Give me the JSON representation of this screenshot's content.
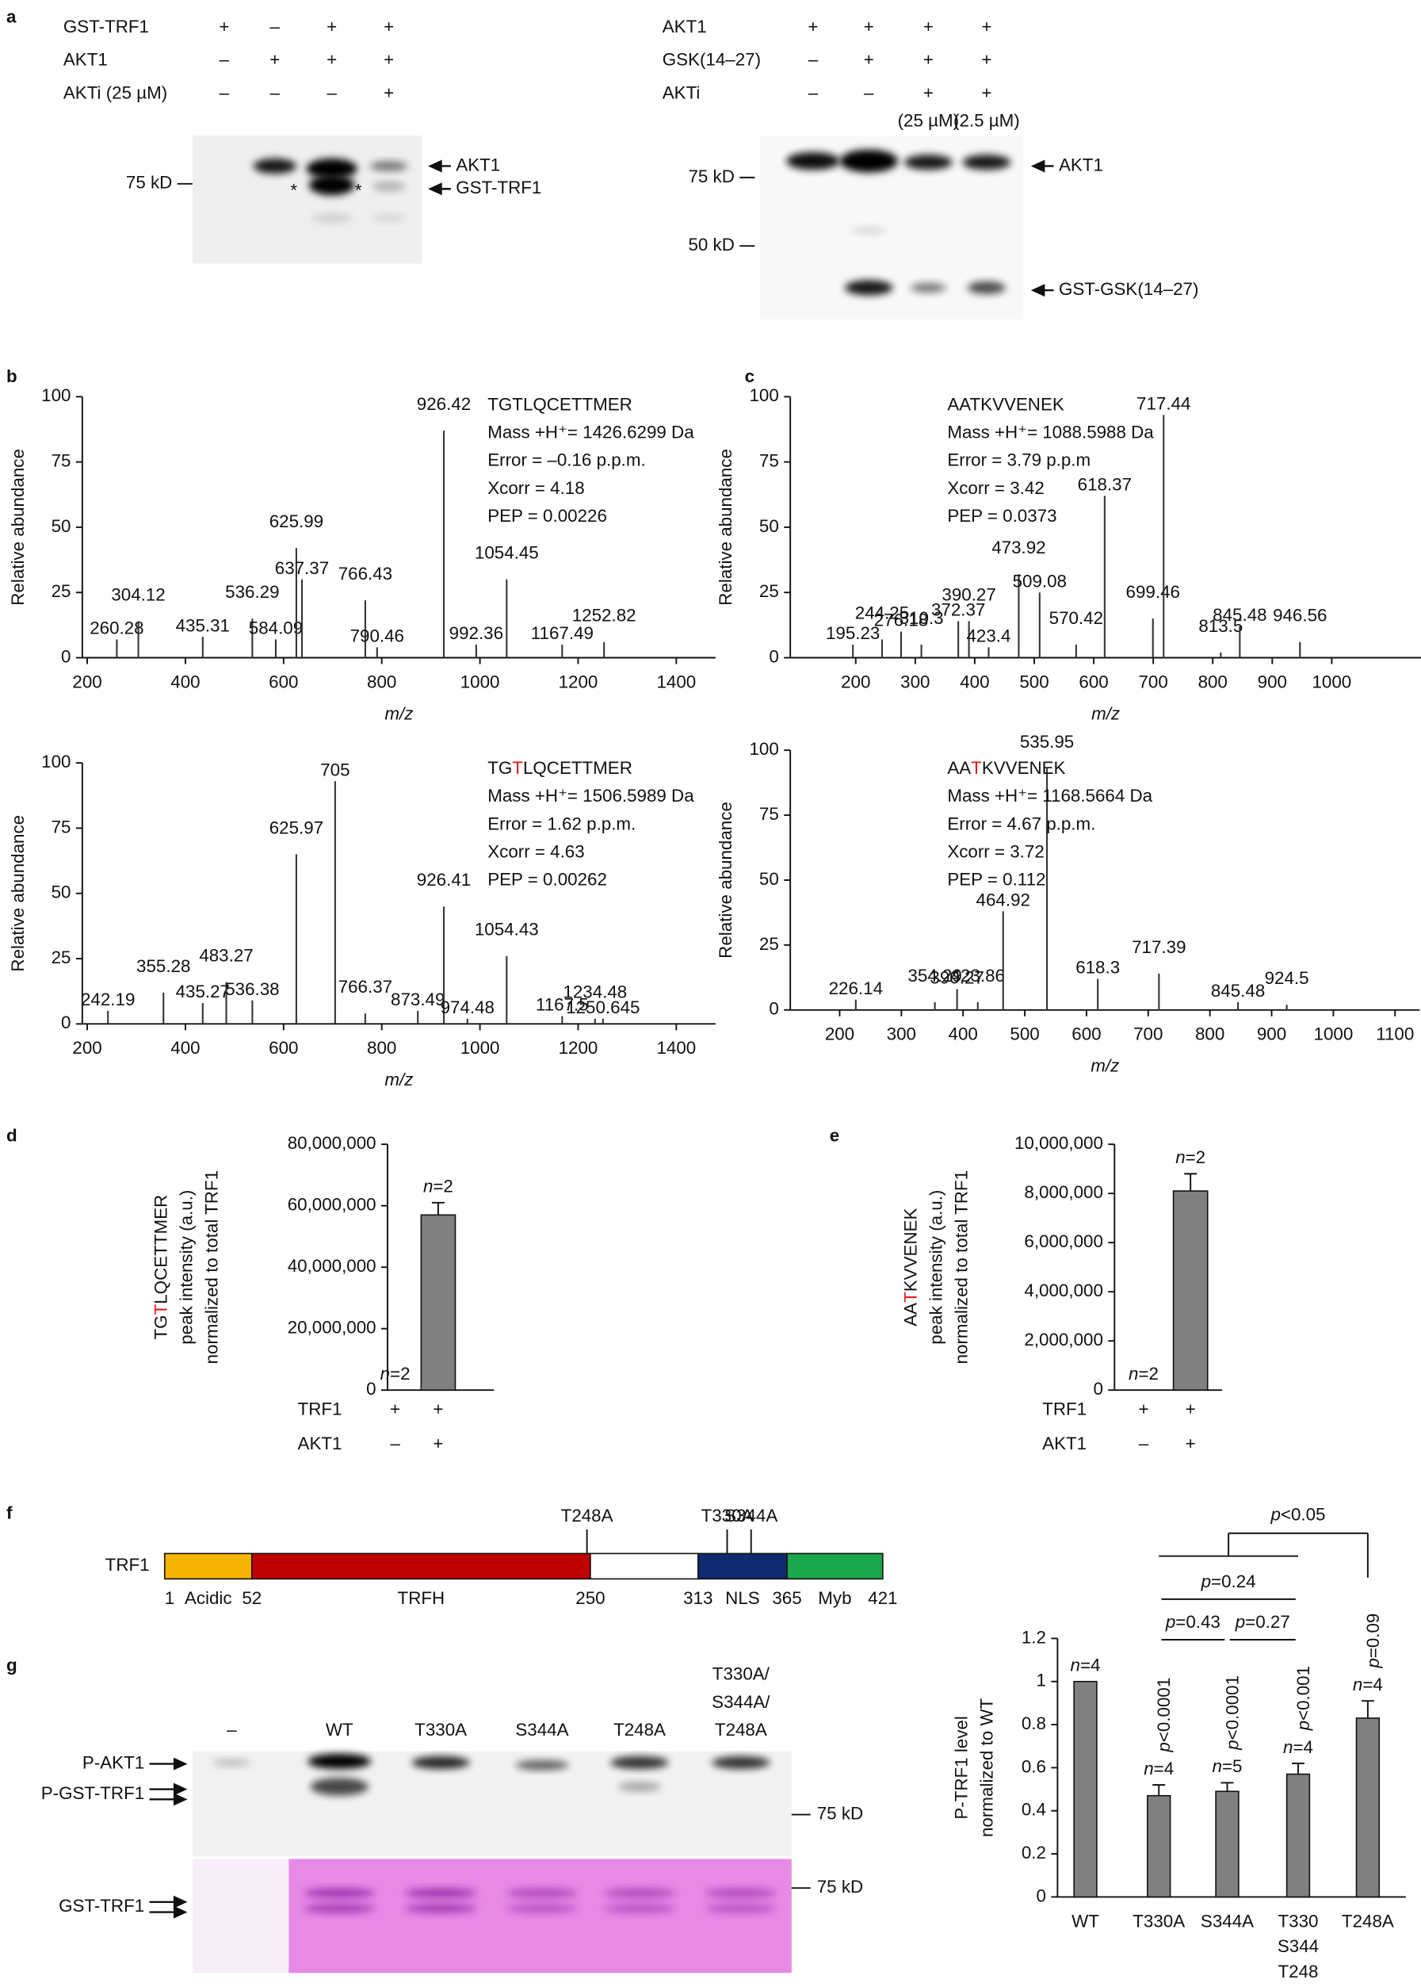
{
  "panel_labels": [
    "a",
    "b",
    "c",
    "d",
    "e",
    "f",
    "g"
  ],
  "blot_a1": {
    "rows": [
      {
        "label": "GST-TRF1",
        "marks": [
          "+",
          "–",
          "+",
          "+"
        ]
      },
      {
        "label": "AKT1",
        "marks": [
          "–",
          "+",
          "+",
          "+"
        ]
      },
      {
        "label": "AKTi (25 µM)",
        "marks": [
          "–",
          "–",
          "–",
          "+"
        ]
      }
    ],
    "markers": [
      "75 kD"
    ],
    "bands": [
      "AKT1",
      "GST-TRF1"
    ],
    "asterisks": [
      "*",
      "*"
    ]
  },
  "blot_a2": {
    "rows": [
      {
        "label": "AKT1",
        "marks": [
          "+",
          "+",
          "+",
          "+"
        ]
      },
      {
        "label": "GSK(14–27)",
        "marks": [
          "–",
          "+",
          "+",
          "+"
        ]
      },
      {
        "label": "AKTi",
        "marks": [
          "–",
          "–",
          "+",
          "+"
        ]
      }
    ],
    "concentrations": [
      "(25 µM)",
      "(2.5 µM)"
    ],
    "markers": [
      "75 kD",
      "50 kD"
    ],
    "bands": [
      "AKT1",
      "GST-GSK(14–27)"
    ]
  },
  "chart_data": [
    {
      "type": "spectrum",
      "xlabel": "m/z",
      "ylabel": "Relative abundance",
      "xlim": [
        190,
        1480
      ],
      "xticks": [
        200,
        400,
        600,
        800,
        1000,
        1200,
        1400
      ],
      "ylim": [
        0,
        100
      ],
      "yticks": [
        0,
        25,
        50,
        75,
        100
      ],
      "color": "#333333",
      "x": [
        260.28,
        304.12,
        435.31,
        536.29,
        584.09,
        625.99,
        637.37,
        766.43,
        790.46,
        926.42,
        992.36,
        1054.45,
        1167.49,
        1252.82
      ],
      "values": [
        7,
        14,
        8,
        15,
        7,
        42,
        30,
        22,
        4,
        87,
        5,
        30,
        5,
        6
      ],
      "peptide": [
        "TGTLQCETTMER"
      ],
      "info": [
        "Mass +H⁺= 1426.6299 Da",
        "Error = –0.16 p.p.m.",
        "Xcorr = 4.18",
        "PEP = 0.00226"
      ]
    },
    {
      "type": "spectrum",
      "xlabel": "m/z",
      "ylabel": "Relative abundance",
      "xlim": [
        190,
        1480
      ],
      "xticks": [
        200,
        400,
        600,
        800,
        1000,
        1200,
        1400
      ],
      "ylim": [
        0,
        100
      ],
      "yticks": [
        0,
        25,
        50,
        75,
        100
      ],
      "color": "#333333",
      "x": [
        242.19,
        355.28,
        435.27,
        483.27,
        536.38,
        625.97,
        705.0,
        766.37,
        873.49,
        926.41,
        974.48,
        1054.43,
        1167.5,
        1234.48,
        1250.645
      ],
      "values": [
        5,
        12,
        8,
        16,
        9,
        65,
        93,
        4,
        5,
        45,
        2,
        26,
        3,
        2,
        2
      ],
      "peptide": [
        "TG",
        "T",
        "LQCETTMER"
      ],
      "highlight_part": 1,
      "highlight_color": "#e31a1c",
      "info": [
        "Mass +H⁺= 1506.5989 Da",
        "Error = 1.62 p.p.m.",
        "Xcorr = 4.63",
        "PEP = 0.00262"
      ]
    },
    {
      "type": "spectrum",
      "xlabel": "m/z",
      "ylabel": "Relative abundance",
      "xlim": [
        90,
        1150
      ],
      "xticks": [
        200,
        300,
        400,
        500,
        600,
        700,
        800,
        900,
        1000
      ],
      "ylim": [
        0,
        100
      ],
      "yticks": [
        0,
        25,
        50,
        75,
        100
      ],
      "color": "#333333",
      "x": [
        195.23,
        244.25,
        276.18,
        310.3,
        372.37,
        390.27,
        423.4,
        473.92,
        509.08,
        570.42,
        618.37,
        699.46,
        717.44,
        813.5,
        845.48,
        946.56
      ],
      "values": [
        5,
        7,
        10,
        5,
        14,
        14,
        4,
        32,
        25,
        5,
        62,
        15,
        93,
        2,
        12,
        6
      ],
      "peptide": [
        "AATKVVENEK"
      ],
      "info": [
        "Mass +H⁺= 1088.5988 Da",
        "Error = 3.79 p.p.m",
        "Xcorr = 3.42",
        "PEP = 0.0373"
      ]
    },
    {
      "type": "spectrum",
      "xlabel": "m/z",
      "ylabel": "Relative abundance",
      "xlim": [
        120,
        1140
      ],
      "xticks": [
        200,
        300,
        400,
        500,
        600,
        700,
        800,
        900,
        1000,
        1100
      ],
      "ylim": [
        0,
        100
      ],
      "yticks": [
        0,
        25,
        50,
        75,
        100
      ],
      "color": "#333333",
      "x": [
        226.14,
        354.29,
        390.27,
        423.86,
        464.92,
        535.95,
        618.3,
        717.39,
        845.48,
        924.5
      ],
      "values": [
        4,
        3,
        8,
        3,
        38,
        93,
        12,
        14,
        3,
        2
      ],
      "peptide": [
        "AA",
        "T",
        "KVVENEK"
      ],
      "highlight_part": 1,
      "highlight_color": "#e31a1c",
      "info": [
        "Mass +H⁺= 1168.5664 Da",
        "Error = 4.67 p.p.m.",
        "Xcorr = 3.72",
        "PEP = 0.112"
      ]
    },
    {
      "type": "bar",
      "ylabel": [
        [
          "TG",
          "T",
          "LQCETTMER"
        ],
        "peak intensity (a.u.)",
        "normalized to total TRF1"
      ],
      "highlight_color": "#e31a1c",
      "color": "#808080",
      "ylim": [
        0,
        80000000
      ],
      "yticks": [
        0,
        {
          "value": 20000000,
          "label": "20,000,000"
        },
        {
          "value": 40000000,
          "label": "40,000,000"
        },
        {
          "value": 60000000,
          "label": "60,000,000"
        },
        {
          "value": 80000000,
          "label": "80,000,000"
        }
      ],
      "values": [
        0,
        57000000
      ],
      "errors": [
        0,
        4000000
      ],
      "n_labels": [
        "n=2",
        "n=2"
      ],
      "conditions": [
        {
          "label": "TRF1",
          "marks": [
            "+",
            "+"
          ]
        },
        {
          "label": "AKT1",
          "marks": [
            "–",
            "+"
          ]
        }
      ]
    },
    {
      "type": "bar",
      "ylabel": [
        [
          "AA",
          "T",
          "KVVENEK"
        ],
        "peak intensity (a.u.)",
        "normalized to total TRF1"
      ],
      "highlight_color": "#e31a1c",
      "color": "#808080",
      "ylim": [
        0,
        10000000
      ],
      "yticks": [
        0,
        {
          "value": 2000000,
          "label": "2,000,000"
        },
        {
          "value": 4000000,
          "label": "4,000,000"
        },
        {
          "value": 6000000,
          "label": "6,000,000"
        },
        {
          "value": 8000000,
          "label": "8,000,000"
        },
        {
          "value": 10000000,
          "label": "10,000,000"
        }
      ],
      "values": [
        0,
        8100000
      ],
      "errors": [
        0,
        700000
      ],
      "n_labels": [
        "n=2",
        "n=2"
      ],
      "conditions": [
        {
          "label": "TRF1",
          "marks": [
            "+",
            "+"
          ]
        },
        {
          "label": "AKT1",
          "marks": [
            "–",
            "+"
          ]
        }
      ]
    },
    {
      "type": "bar",
      "ylabel": [
        "P-TRF1 level",
        "normalized to WT"
      ],
      "color": "#808080",
      "ylim": [
        0,
        1.2
      ],
      "yticks": [
        0,
        0.2,
        0.4,
        0.6,
        0.8,
        1,
        1.2
      ],
      "categories": [
        "WT",
        "T330A",
        "S344A",
        [
          "T330",
          "S344",
          "T248"
        ],
        "T248A"
      ],
      "values": [
        1,
        0.47,
        0.49,
        0.57,
        0.83
      ],
      "errors": [
        0,
        0.05,
        0.04,
        0.05,
        0.08
      ],
      "n_labels": [
        "n=4",
        "n=4",
        "n=5",
        "n=4",
        "n=4"
      ],
      "p_labels": [
        null,
        "p<0.0001",
        "p<0.0001",
        "p<0.001",
        "p=0.09"
      ],
      "brackets": [
        {
          "label": "p=0.43",
          "from": 1,
          "to": 2
        },
        {
          "label": "p=0.27",
          "from": 2,
          "to": 3
        },
        {
          "label": "p=0.24",
          "from": 1,
          "to": 3
        },
        {
          "label": "p<0.05",
          "from": [
            1,
            3
          ],
          "to": 4
        }
      ]
    }
  ],
  "domain_map": {
    "protein": "TRF1",
    "length": 421,
    "domains": [
      {
        "name": "Acidic",
        "start": 1,
        "end": 52,
        "color": "#f5b400"
      },
      {
        "name": "TRFH",
        "start": 52,
        "end": 250,
        "color": "#c00000"
      },
      {
        "start": 250,
        "end": 313,
        "color": "#ffffff"
      },
      {
        "name": "NLS",
        "start": 313,
        "end": 365,
        "color": "#0d2a6e"
      },
      {
        "name": "Myb",
        "start": 365,
        "end": 421,
        "color": "#1aa64a"
      }
    ],
    "name_colors": [
      "#f5b400",
      "#c00000",
      null,
      "#0d2a6e",
      "#1aa64a"
    ],
    "boundaries": [
      1,
      52,
      250,
      313,
      365,
      421
    ],
    "mutations": [
      {
        "label": "T248A",
        "position": 248
      },
      {
        "label": "T330A",
        "position": 330
      },
      {
        "label": "S344A",
        "position": 344
      }
    ]
  },
  "blot_g": {
    "lanes": [
      "–",
      "WT",
      "T330A",
      "S344A",
      "T248A",
      [
        "T330A/",
        "S344A/",
        "T248A"
      ]
    ],
    "labels": [
      "P-AKT1",
      "P-GST-TRF1",
      "GST-TRF1"
    ],
    "markers": [
      "75 kD",
      "75 kD"
    ]
  }
}
